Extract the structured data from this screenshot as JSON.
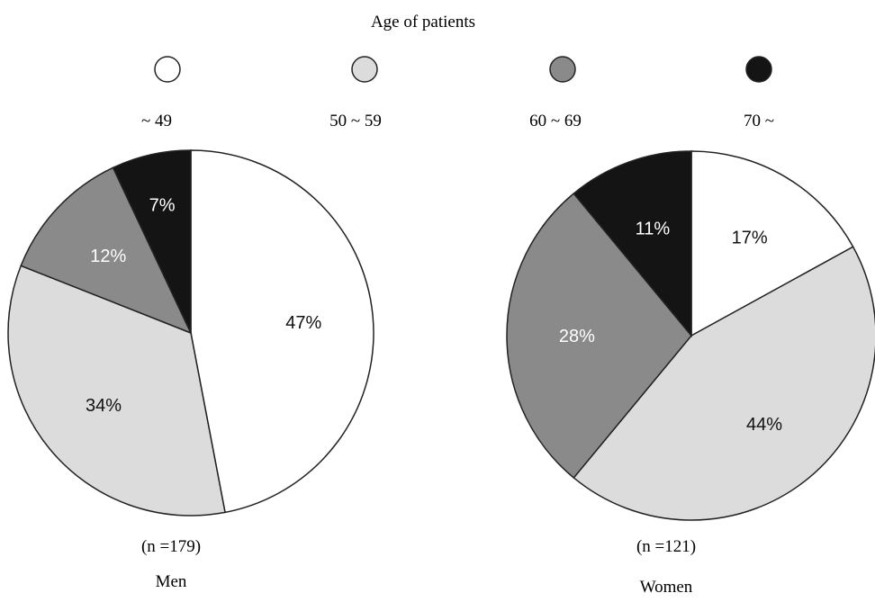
{
  "chart_data": {
    "type": "pie",
    "title": "Age of patients",
    "legend": [
      {
        "label": "~ 49",
        "color": "#ffffff"
      },
      {
        "label": "50 ~ 59",
        "color": "#dcdcdc"
      },
      {
        "label": "60 ~ 69",
        "color": "#8a8a8a"
      },
      {
        "label": "70 ~",
        "color": "#141414"
      }
    ],
    "charts": [
      {
        "name": "Men",
        "n_label": "(n =179)",
        "slices": [
          {
            "category": "~ 49",
            "value": 47,
            "label": "47%"
          },
          {
            "category": "50 ~ 59",
            "value": 34,
            "label": "34%"
          },
          {
            "category": "60 ~ 69",
            "value": 12,
            "label": "12%"
          },
          {
            "category": "70 ~",
            "value": 7,
            "label": "7%"
          }
        ]
      },
      {
        "name": "Women",
        "n_label": "(n =121)",
        "slices": [
          {
            "category": "~ 49",
            "value": 17,
            "label": "17%"
          },
          {
            "category": "50 ~ 59",
            "value": 44,
            "label": "44%"
          },
          {
            "category": "60 ~ 69",
            "value": 28,
            "label": "28%"
          },
          {
            "category": "70 ~",
            "value": 11,
            "label": "11%"
          }
        ]
      }
    ]
  }
}
